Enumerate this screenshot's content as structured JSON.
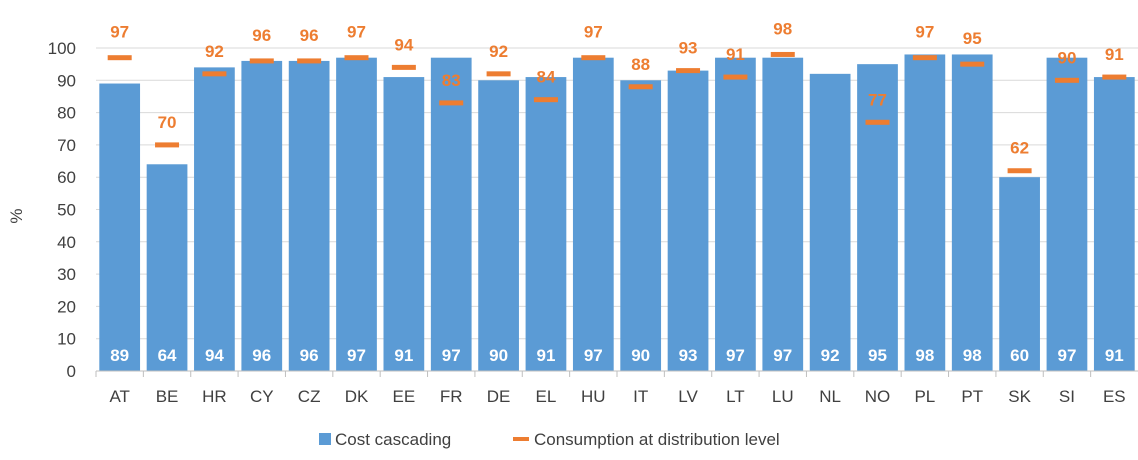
{
  "chart_data": {
    "type": "bar",
    "ylabel": "%",
    "ylim": [
      0,
      100
    ],
    "yticks": [
      0,
      10,
      20,
      30,
      40,
      50,
      60,
      70,
      80,
      90,
      100
    ],
    "categories": [
      "AT",
      "BE",
      "HR",
      "CY",
      "CZ",
      "DK",
      "EE",
      "FR",
      "DE",
      "EL",
      "HU",
      "IT",
      "LV",
      "LT",
      "LU",
      "NL",
      "NO",
      "PL",
      "PT",
      "SK",
      "SI",
      "ES"
    ],
    "series": [
      {
        "name": "Cost cascading",
        "kind": "bar",
        "color": "#5B9BD5",
        "values": [
          89,
          64,
          94,
          96,
          96,
          97,
          91,
          97,
          90,
          91,
          97,
          90,
          93,
          97,
          97,
          92,
          95,
          98,
          98,
          60,
          97,
          91
        ]
      },
      {
        "name": "Consumption at distribution level",
        "kind": "marker",
        "color": "#ED7D31",
        "values": [
          97,
          70,
          92,
          96,
          96,
          97,
          94,
          83,
          92,
          84,
          97,
          88,
          93,
          91,
          98,
          null,
          77,
          97,
          95,
          62,
          90,
          91
        ]
      }
    ],
    "legend": "bottom"
  }
}
